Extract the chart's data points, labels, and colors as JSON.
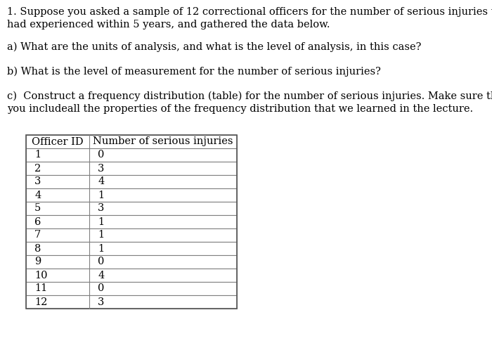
{
  "title_line1": "1. Suppose you asked a sample of 12 correctional officers for the number of serious injuries they",
  "title_line2": "had experienced within 5 years, and gathered the data below.",
  "question_a": "a) What are the units of analysis, and what is the level of analysis, in this case?",
  "question_b": "b) What is the level of measurement for the number of serious injuries?",
  "question_c_line1": "c)  Construct a frequency distribution (table) for the number of serious injuries. Make sure that",
  "question_c_line2": "you includeall the properties of the frequency distribution that we learned in the lecture.",
  "table_header": [
    "Officer ID",
    "Number of serious injuries"
  ],
  "officer_ids": [
    1,
    2,
    3,
    4,
    5,
    6,
    7,
    8,
    9,
    10,
    11,
    12
  ],
  "injuries": [
    0,
    3,
    4,
    1,
    3,
    1,
    1,
    1,
    0,
    4,
    0,
    3
  ],
  "background_color": "#ffffff",
  "text_color": "#000000",
  "font_size": 10.5,
  "table_font_size": 10.5,
  "font_family": "serif"
}
